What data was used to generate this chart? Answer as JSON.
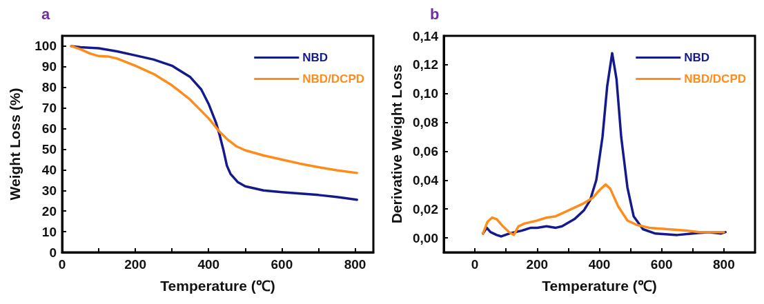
{
  "chart_data": [
    {
      "type": "line",
      "title": "a",
      "xlabel": "Temperature (℃)",
      "ylabel": "Weight Loss (%)",
      "xlim": [
        0,
        850
      ],
      "ylim": [
        0,
        105
      ],
      "xticks": [
        0,
        {
          "value": 100,
          "label": null
        },
        200,
        {
          "value": 300,
          "label": null
        },
        400,
        {
          "value": 500,
          "label": null
        },
        600,
        {
          "value": 700,
          "label": null
        },
        800
      ],
      "yticks": [
        0,
        10,
        20,
        30,
        40,
        50,
        60,
        70,
        80,
        90,
        100
      ],
      "legend": "top right",
      "grid": false,
      "marker": "none",
      "line_style": "solid",
      "series": [
        {
          "name": "NBD",
          "color": "#141a8c",
          "x": [
            25,
            50,
            100,
            150,
            200,
            250,
            300,
            350,
            380,
            400,
            420,
            430,
            440,
            450,
            460,
            480,
            500,
            550,
            600,
            650,
            700,
            750,
            805
          ],
          "values": [
            100,
            99.5,
            99,
            97.5,
            95.5,
            93.5,
            90.5,
            85,
            79,
            72,
            63,
            57,
            50,
            42,
            38,
            34,
            32,
            30,
            29.2,
            28.5,
            27.8,
            26.8,
            25.5
          ]
        },
        {
          "name": "NBD/DCPD",
          "color": "#ff8c1a",
          "x": [
            25,
            50,
            75,
            100,
            125,
            150,
            200,
            250,
            300,
            350,
            400,
            430,
            450,
            475,
            500,
            550,
            600,
            650,
            700,
            750,
            805
          ],
          "values": [
            100,
            98.5,
            96.5,
            95.2,
            95,
            94,
            90.5,
            86.5,
            81,
            74,
            65,
            58.5,
            55,
            51.5,
            49.5,
            47,
            45,
            43,
            41.3,
            39.8,
            38.5
          ]
        }
      ]
    },
    {
      "type": "line",
      "title": "b",
      "xlabel": "Temperature (℃)",
      "ylabel": "Derivative Weight Loss",
      "xlim": [
        -100,
        900
      ],
      "ylim": [
        -0.01,
        0.14
      ],
      "xticks": [
        0,
        {
          "value": 100,
          "label": null
        },
        200,
        {
          "value": 300,
          "label": null
        },
        400,
        {
          "value": 500,
          "label": null
        },
        600,
        {
          "value": 700,
          "label": null
        },
        800
      ],
      "yticks": [
        {
          "value": 0,
          "label": "0,00"
        },
        {
          "value": 0.02,
          "label": "0,02"
        },
        {
          "value": 0.04,
          "label": "0,04"
        },
        {
          "value": 0.06,
          "label": "0,06"
        },
        {
          "value": 0.08,
          "label": "0,08"
        },
        {
          "value": 0.1,
          "label": "0,10"
        },
        {
          "value": 0.12,
          "label": "0,12"
        },
        {
          "value": 0.14,
          "label": "0,14"
        }
      ],
      "legend": "top right",
      "grid": false,
      "marker": "none",
      "line_style": "solid",
      "series": [
        {
          "name": "NBD",
          "color": "#141a8c",
          "x": [
            26,
            38,
            50,
            70,
            85,
            110,
            150,
            180,
            200,
            230,
            260,
            280,
            320,
            350,
            370,
            390,
            410,
            425,
            441,
            455,
            470,
            490,
            510,
            540,
            580,
            650,
            700,
            750,
            790,
            805
          ],
          "values": [
            0.003,
            0.007,
            0.004,
            0.002,
            0.001,
            0.003,
            0.005,
            0.007,
            0.007,
            0.008,
            0.007,
            0.008,
            0.013,
            0.019,
            0.026,
            0.04,
            0.07,
            0.105,
            0.128,
            0.11,
            0.07,
            0.035,
            0.015,
            0.006,
            0.003,
            0.002,
            0.003,
            0.004,
            0.003,
            0.004
          ]
        },
        {
          "name": "NBD/DCPD",
          "color": "#ff8c1a",
          "x": [
            26,
            40,
            55,
            70,
            90,
            110,
            125,
            140,
            160,
            200,
            230,
            260,
            300,
            350,
            380,
            400,
            420,
            435,
            460,
            490,
            520,
            560,
            620,
            680,
            720,
            800
          ],
          "values": [
            0.003,
            0.011,
            0.014,
            0.013,
            0.008,
            0.004,
            0.002,
            0.008,
            0.01,
            0.012,
            0.014,
            0.015,
            0.019,
            0.024,
            0.028,
            0.033,
            0.037,
            0.034,
            0.022,
            0.012,
            0.009,
            0.007,
            0.006,
            0.005,
            0.004,
            0.004
          ]
        }
      ]
    }
  ]
}
